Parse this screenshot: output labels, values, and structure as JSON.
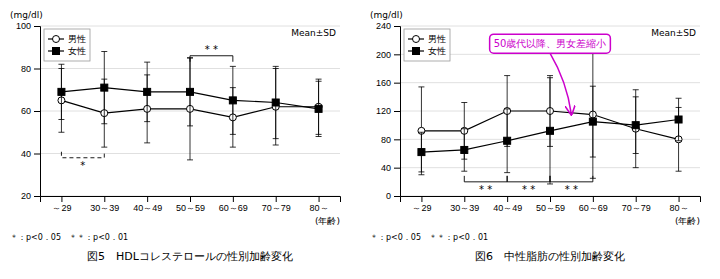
{
  "chart_data": [
    {
      "type": "line",
      "title": "図5　HDLコレステロールの性別加齢変化",
      "y_label": "(mg/dl)",
      "x_label": "(年齢)",
      "note": "＊：p<0．05　＊＊：p<0．01",
      "categories": [
        "～29",
        "30～39",
        "40～49",
        "50～59",
        "60～69",
        "70～79",
        "80～"
      ],
      "series": [
        {
          "name": "男性",
          "color": "black",
          "marker": "circle-open",
          "line_style": "solid",
          "values": [
            65,
            59,
            61,
            61,
            57,
            62,
            62
          ],
          "errors": [
            15,
            16,
            16,
            24,
            14,
            18,
            13
          ]
        },
        {
          "name": "女性",
          "color": "black",
          "marker": "square",
          "line_style": "solid",
          "values": [
            69,
            71,
            69,
            69,
            65,
            64,
            61
          ],
          "errors": [
            13,
            17,
            14,
            16,
            16,
            17,
            13
          ]
        }
      ],
      "ylim": [
        20,
        100
      ],
      "yticks": [
        20,
        40,
        60,
        80,
        100
      ],
      "grid": true,
      "legend": "upper left",
      "annotations": [
        {
          "text": "Mean±SD"
        },
        {
          "text": "*",
          "from": "～29",
          "to": "30～39",
          "y": 38,
          "line_style": "dashed"
        },
        {
          "text": "* *",
          "from": "50～59",
          "to": "60～69",
          "y": 86,
          "line_style": "solid"
        }
      ]
    },
    {
      "type": "line",
      "title": "図6　中性脂肪の性別加齢変化",
      "y_label": "(mg/dl)",
      "x_label": "(年齢)",
      "note": "＊：p<0．05　＊＊：p<0．01",
      "categories": [
        "～29",
        "30～39",
        "40～49",
        "50～59",
        "60～69",
        "70～79",
        "80～"
      ],
      "series": [
        {
          "name": "男性",
          "color": "black",
          "marker": "circle-open",
          "line_style": "solid",
          "values": [
            92,
            92,
            120,
            120,
            115,
            95,
            80
          ],
          "errors": [
            62,
            40,
            50,
            50,
            90,
            55,
            45
          ]
        },
        {
          "name": "女性",
          "color": "black",
          "marker": "square",
          "line_style": "solid",
          "values": [
            62,
            65,
            78,
            92,
            105,
            100,
            108
          ],
          "errors": [
            28,
            30,
            45,
            75,
            50,
            40,
            30
          ]
        }
      ],
      "ylim": [
        0,
        240
      ],
      "yticks": [
        0,
        40,
        80,
        120,
        160,
        200,
        240
      ],
      "grid": true,
      "legend": "upper left",
      "annotations": [
        {
          "text": "Mean±SD"
        },
        {
          "text": "* *",
          "from": "30～39",
          "to": "40～49",
          "y": 20,
          "line_style": "solid"
        },
        {
          "text": "* *",
          "from": "40～49",
          "to": "50～59",
          "y": 20,
          "line_style": "solid"
        },
        {
          "text": "* *",
          "from": "50～59",
          "to": "60～69",
          "y": 20,
          "line_style": "solid"
        },
        {
          "text": "50歳代以降、男女差縮小",
          "color": "#cc00cc",
          "between": [
            "50～59",
            "60～69"
          ],
          "y": 115,
          "text_at": "50～59",
          "text_y": 215
        }
      ]
    }
  ]
}
